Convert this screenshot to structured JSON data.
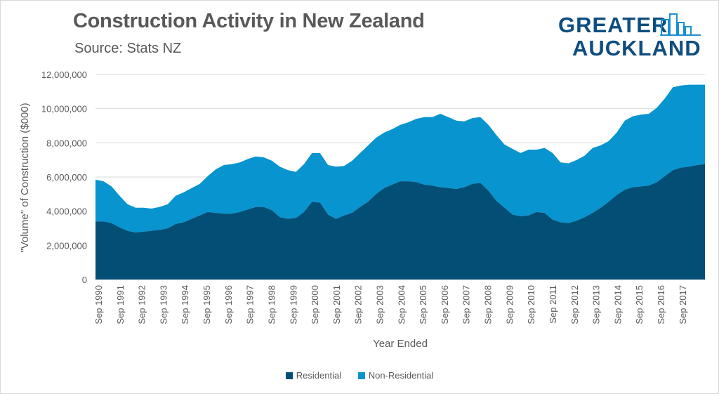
{
  "header": {
    "title": "Construction Activity in New Zealand",
    "subtitle": "Source: Stats NZ"
  },
  "logo": {
    "line1": "GREATER",
    "line2": "AUCKLAND"
  },
  "colors": {
    "residential": "#034e75",
    "non_residential": "#0794cf",
    "grid": "#d9d9d9",
    "text": "#595959"
  },
  "chart_data": {
    "type": "area",
    "stacked": true,
    "title": "Construction Activity in New Zealand",
    "xlabel": "Year Ended",
    "ylabel": "\"Volume\" of Construction ($000)",
    "ylim": [
      0,
      12000000
    ],
    "yticks": [
      "0",
      "2,000,000",
      "4,000,000",
      "6,000,000",
      "8,000,000",
      "10,000,000",
      "12,000,000"
    ],
    "xtick_labels": [
      "Sep 1990",
      "Sep 1991",
      "Sep 1992",
      "Sep 1993",
      "Sep 1994",
      "Sep 1995",
      "Sep 1996",
      "Sep 1997",
      "Sep 1998",
      "Sep 1999",
      "Sep 2000",
      "Sep 2001",
      "Sep 2002",
      "Sep 2003",
      "Sep 2004",
      "Sep 2005",
      "Sep 2006",
      "Sep 2007",
      "Sep 2008",
      "Sep 2009",
      "Sep 2010",
      "Sep 2011",
      "Sep 2012",
      "Sep 2013",
      "Sep 2014",
      "Sep 2015",
      "Sep 2016",
      "Sep 2017"
    ],
    "legend_position": "bottom",
    "grid": true,
    "series": [
      {
        "name": "Residential",
        "values": [
          3400000,
          3400000,
          3300000,
          3050000,
          2850000,
          2750000,
          2800000,
          2850000,
          2900000,
          3000000,
          3250000,
          3350000,
          3550000,
          3750000,
          3950000,
          3900000,
          3850000,
          3850000,
          3950000,
          4100000,
          4250000,
          4250000,
          4050000,
          3650000,
          3550000,
          3600000,
          3950000,
          4550000,
          4500000,
          3800000,
          3550000,
          3750000,
          3900000,
          4250000,
          4550000,
          5000000,
          5350000,
          5550000,
          5750000,
          5750000,
          5700000,
          5550000,
          5500000,
          5400000,
          5350000,
          5300000,
          5400000,
          5600000,
          5650000,
          5200000,
          4600000,
          4200000,
          3800000,
          3700000,
          3750000,
          3950000,
          3900000,
          3500000,
          3350000,
          3300000,
          3450000,
          3650000,
          3900000,
          4200000,
          4550000,
          4950000,
          5250000,
          5400000,
          5450000,
          5500000,
          5700000,
          6050000,
          6400000,
          6550000,
          6600000,
          6700000,
          6750000
        ]
      },
      {
        "name": "Non-Residential",
        "values": [
          2450000,
          2350000,
          2150000,
          1850000,
          1550000,
          1450000,
          1400000,
          1300000,
          1350000,
          1400000,
          1650000,
          1750000,
          1800000,
          1850000,
          2100000,
          2550000,
          2850000,
          2900000,
          2900000,
          2950000,
          2950000,
          2900000,
          2900000,
          2950000,
          2850000,
          2700000,
          2800000,
          2850000,
          2900000,
          2900000,
          3050000,
          2900000,
          3050000,
          3150000,
          3300000,
          3300000,
          3250000,
          3250000,
          3300000,
          3450000,
          3700000,
          3950000,
          4000000,
          4300000,
          4150000,
          4000000,
          3850000,
          3850000,
          3850000,
          3850000,
          3850000,
          3700000,
          3850000,
          3700000,
          3850000,
          3650000,
          3800000,
          3900000,
          3500000,
          3500000,
          3550000,
          3600000,
          3800000,
          3650000,
          3550000,
          3650000,
          4050000,
          4150000,
          4200000,
          4200000,
          4350000,
          4550000,
          4850000,
          4800000,
          4800000,
          4700000,
          4650000
        ]
      }
    ]
  }
}
